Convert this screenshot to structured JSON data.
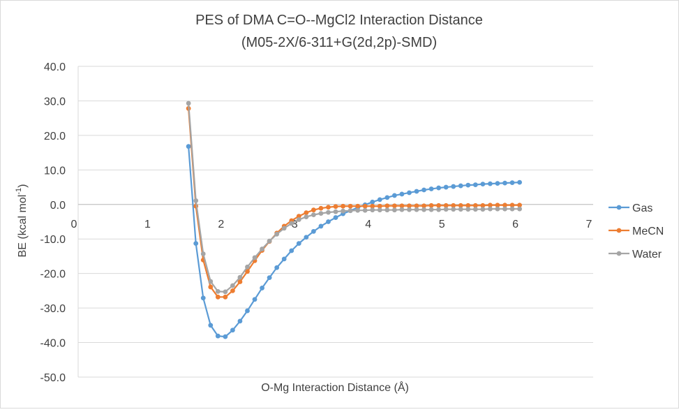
{
  "chart_data": {
    "type": "scatter",
    "title_line1": "PES of DMA C=O--MgCl2 Interaction Distance",
    "title_line2": "(M05-2X/6-311+G(2d,2p)-SMD)",
    "xlabel": "O-Mg Interaction Distance (Å)",
    "ylabel_main": "BE (kcal mol",
    "ylabel_sup": "-1",
    "ylabel_close": ")",
    "xlim": [
      0,
      7
    ],
    "ylim": [
      -50,
      40
    ],
    "x_ticks": [
      "0",
      "1",
      "2",
      "3",
      "4",
      "5",
      "6",
      "7"
    ],
    "y_ticks": [
      "40.0",
      "30.0",
      "20.0",
      "10.0",
      "0.0",
      "-10.0",
      "-20.0",
      "-30.0",
      "-40.0",
      "-50.0"
    ],
    "grid": true,
    "legend_position": "right",
    "series": [
      {
        "name": "Gas",
        "color": "#5B9BD5",
        "x": [
          1.5,
          1.6,
          1.7,
          1.8,
          1.9,
          2.0,
          2.1,
          2.2,
          2.3,
          2.4,
          2.5,
          2.6,
          2.7,
          2.8,
          2.9,
          3.0,
          3.1,
          3.2,
          3.3,
          3.4,
          3.5,
          3.6,
          3.7,
          3.8,
          3.9,
          4.0,
          4.1,
          4.2,
          4.3,
          4.4,
          4.5,
          4.6,
          4.7,
          4.8,
          4.9,
          5.0,
          5.1,
          5.2,
          5.3,
          5.4,
          5.5,
          5.6,
          5.7,
          5.8,
          5.9,
          6.0
        ],
        "y": [
          16.8,
          -11.3,
          -27.1,
          -35.0,
          -38.1,
          -38.3,
          -36.4,
          -33.8,
          -30.8,
          -27.5,
          -24.2,
          -21.2,
          -18.3,
          -15.8,
          -13.4,
          -11.3,
          -9.5,
          -7.8,
          -6.3,
          -5.0,
          -3.8,
          -2.7,
          -1.8,
          -0.9,
          -0.1,
          0.7,
          1.4,
          2.0,
          2.6,
          3.0,
          3.4,
          3.8,
          4.2,
          4.5,
          4.8,
          5.0,
          5.2,
          5.4,
          5.6,
          5.7,
          5.9,
          6.0,
          6.1,
          6.2,
          6.3,
          6.4
        ]
      },
      {
        "name": "MeCN",
        "color": "#ED7D31",
        "x": [
          1.5,
          1.6,
          1.7,
          1.8,
          1.9,
          2.0,
          2.1,
          2.2,
          2.3,
          2.4,
          2.5,
          2.6,
          2.7,
          2.8,
          2.9,
          3.0,
          3.1,
          3.2,
          3.3,
          3.4,
          3.5,
          3.6,
          3.7,
          3.8,
          3.9,
          4.0,
          4.1,
          4.2,
          4.3,
          4.4,
          4.5,
          4.6,
          4.7,
          4.8,
          4.9,
          5.0,
          5.1,
          5.2,
          5.3,
          5.4,
          5.5,
          5.6,
          5.7,
          5.8,
          5.9,
          6.0
        ],
        "y": [
          27.8,
          -0.5,
          -16.1,
          -23.9,
          -26.8,
          -26.8,
          -25.0,
          -22.4,
          -19.4,
          -16.3,
          -13.3,
          -10.7,
          -8.3,
          -6.3,
          -4.7,
          -3.4,
          -2.4,
          -1.6,
          -1.1,
          -0.8,
          -0.6,
          -0.5,
          -0.5,
          -0.5,
          -0.5,
          -0.5,
          -0.5,
          -0.4,
          -0.4,
          -0.4,
          -0.4,
          -0.4,
          -0.4,
          -0.3,
          -0.3,
          -0.3,
          -0.3,
          -0.3,
          -0.3,
          -0.3,
          -0.3,
          -0.2,
          -0.2,
          -0.2,
          -0.2,
          -0.2
        ]
      },
      {
        "name": "Water",
        "color": "#A5A5A5",
        "x": [
          1.5,
          1.6,
          1.7,
          1.8,
          1.9,
          2.0,
          2.1,
          2.2,
          2.3,
          2.4,
          2.5,
          2.6,
          2.7,
          2.8,
          2.9,
          3.0,
          3.1,
          3.2,
          3.3,
          3.4,
          3.5,
          3.6,
          3.7,
          3.8,
          3.9,
          4.0,
          4.1,
          4.2,
          4.3,
          4.4,
          4.5,
          4.6,
          4.7,
          4.8,
          4.9,
          5.0,
          5.1,
          5.2,
          5.3,
          5.4,
          5.5,
          5.6,
          5.7,
          5.8,
          5.9,
          6.0
        ],
        "y": [
          29.3,
          1.1,
          -14.3,
          -22.3,
          -25.2,
          -25.3,
          -23.5,
          -21.1,
          -18.1,
          -15.4,
          -12.9,
          -10.6,
          -8.6,
          -6.9,
          -5.5,
          -4.4,
          -3.6,
          -3.0,
          -2.6,
          -2.3,
          -2.1,
          -1.9,
          -1.8,
          -1.7,
          -1.7,
          -1.6,
          -1.6,
          -1.6,
          -1.6,
          -1.5,
          -1.5,
          -1.5,
          -1.5,
          -1.5,
          -1.5,
          -1.4,
          -1.4,
          -1.4,
          -1.4,
          -1.4,
          -1.4,
          -1.3,
          -1.3,
          -1.3,
          -1.3,
          -1.3
        ]
      }
    ]
  }
}
